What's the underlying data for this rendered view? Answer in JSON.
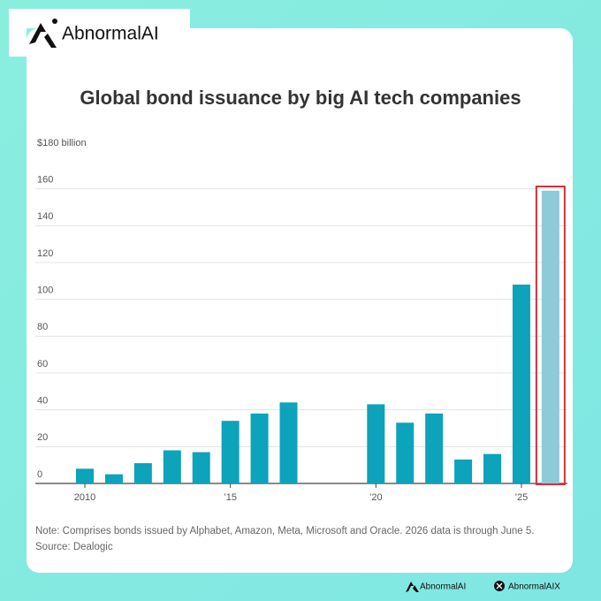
{
  "brand": {
    "logo": "AbnormalAI",
    "footer_site": "AbnormalAI",
    "footer_handle": "AbnormalAIX"
  },
  "chart_data": {
    "type": "bar",
    "title": "Global bond issuance by big AI tech companies",
    "categories": [
      "2010",
      null,
      null,
      null,
      null,
      "’15",
      null,
      null,
      null,
      null,
      "’20",
      null,
      null,
      null,
      null,
      "’25",
      null
    ],
    "values": [
      8,
      5,
      11,
      18,
      17,
      34,
      38,
      44,
      null,
      null,
      43,
      33,
      38,
      13,
      16,
      108,
      159
    ],
    "colors": [
      "#0ca3bb",
      "#0ca3bb",
      "#0ca3bb",
      "#0ca3bb",
      "#0ca3bb",
      "#0ca3bb",
      "#0ca3bb",
      "#0ca3bb",
      "#0ca3bb",
      "#0ca3bb",
      "#0ca3bb",
      "#0ca3bb",
      "#0ca3bb",
      "#0ca3bb",
      "#0ca3bb",
      "#0ca3bb",
      "#8ecad7"
    ],
    "ylim": [
      0,
      180
    ],
    "yticks": [
      0,
      20,
      40,
      60,
      80,
      100,
      120,
      140,
      160,
      {
        "value": 180,
        "label": "$180 billion"
      }
    ],
    "grid": true,
    "note": "Note: Comprises bonds issued by Alphabet, Amazon, Meta, Microsoft and Oracle. 2026 data is through June 5.",
    "source": "Source: Dealogic"
  }
}
